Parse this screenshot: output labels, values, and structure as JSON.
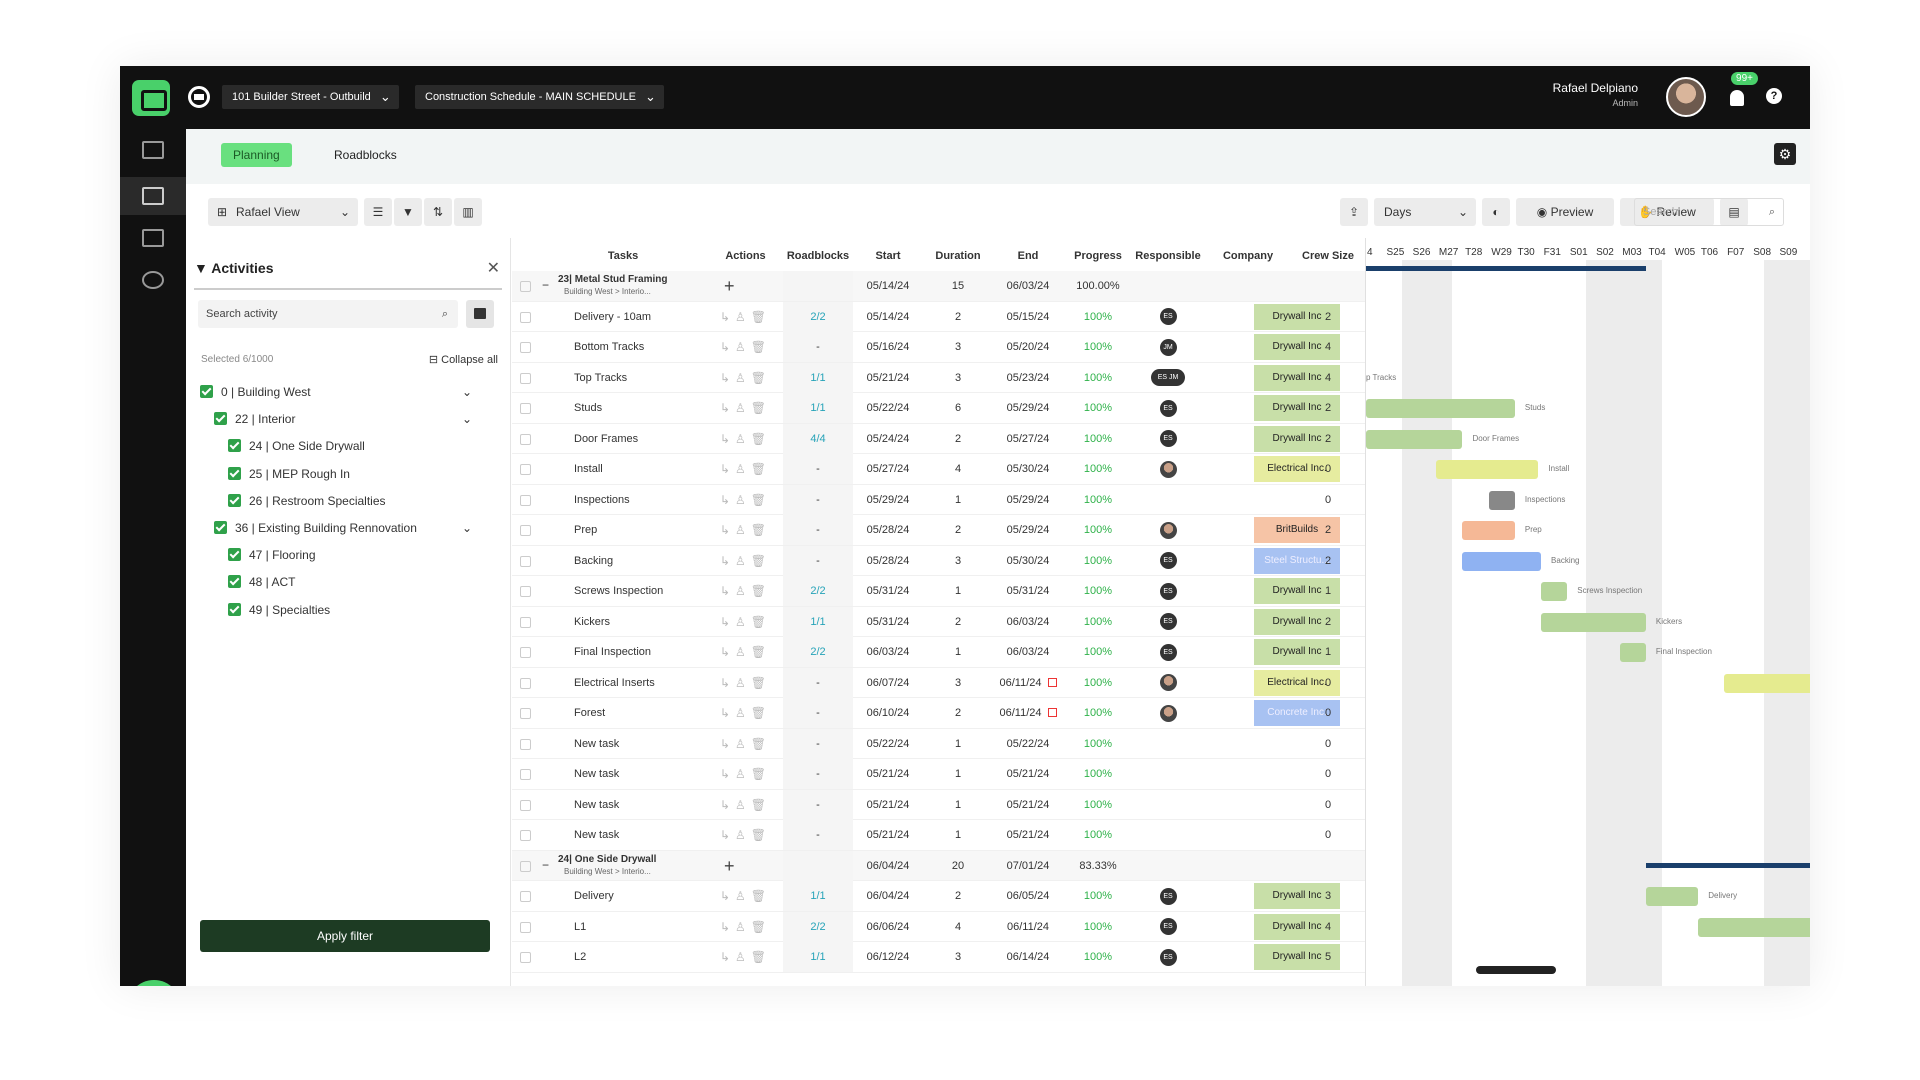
{
  "topbar": {
    "project": "101 Builder Street - Outbuild",
    "schedule": "Construction Schedule - MAIN SCHEDULE",
    "user_name": "Rafael Delpiano",
    "user_role": "Admin",
    "notif_badge": "99+",
    "help": "?"
  },
  "tabs": {
    "planning": "Planning",
    "roadblocks": "Roadblocks"
  },
  "toolbar": {
    "view": "Rafael View",
    "scale": "Days",
    "preview": "Preview",
    "review": "Review",
    "search_placeholder": "Search"
  },
  "activities": {
    "title": "Activities",
    "search_placeholder": "Search activity",
    "selected": "Selected 6/1000",
    "collapse_all": "Collapse all",
    "apply": "Apply filter",
    "tree": [
      {
        "label": "0 | Building West",
        "level": 0,
        "chevron": true
      },
      {
        "label": "22 | Interior",
        "level": 1,
        "chevron": true
      },
      {
        "label": "24 | One Side Drywall",
        "level": 2,
        "chevron": false
      },
      {
        "label": "25 | MEP Rough In",
        "level": 2,
        "chevron": false
      },
      {
        "label": "26 | Restroom Specialties",
        "level": 2,
        "chevron": false
      },
      {
        "label": "36 | Existing Building Rennovation",
        "level": 1,
        "chevron": true
      },
      {
        "label": "47 | Flooring",
        "level": 2,
        "chevron": false
      },
      {
        "label": "48 | ACT",
        "level": 2,
        "chevron": false
      },
      {
        "label": "49 | Specialties",
        "level": 2,
        "chevron": false
      }
    ]
  },
  "table": {
    "headers": [
      "Tasks",
      "Actions",
      "Roadblocks",
      "Start",
      "Duration",
      "End",
      "Progress",
      "Responsible",
      "Company",
      "Crew Size"
    ],
    "rows": [
      {
        "group": true,
        "task": "23| Metal Stud Framing",
        "sub": "Building West > Interio...",
        "start": "05/14/24",
        "duration": "15",
        "end": "06/03/24",
        "progress": "100.00%"
      },
      {
        "task": "Delivery - 10am",
        "rb": "2/2",
        "start": "05/14/24",
        "duration": "2",
        "end": "05/15/24",
        "progress": "100%",
        "resp": "ES",
        "company": "Drywall Inc",
        "ccolor": "#c8dfa8",
        "crew": "2"
      },
      {
        "task": "Bottom Tracks",
        "rb": "-",
        "start": "05/16/24",
        "duration": "3",
        "end": "05/20/24",
        "progress": "100%",
        "resp": "JM",
        "company": "Drywall Inc",
        "ccolor": "#c8dfa8",
        "crew": "4"
      },
      {
        "task": "Top Tracks",
        "rb": "1/1",
        "start": "05/21/24",
        "duration": "3",
        "end": "05/23/24",
        "progress": "100%",
        "resp": "ES JM",
        "company": "Drywall Inc",
        "ccolor": "#c8dfa8",
        "crew": "4"
      },
      {
        "task": "Studs",
        "rb": "1/1",
        "start": "05/22/24",
        "duration": "6",
        "end": "05/29/24",
        "progress": "100%",
        "resp": "ES",
        "company": "Drywall Inc",
        "ccolor": "#c8dfa8",
        "crew": "2"
      },
      {
        "task": "Door Frames",
        "rb": "4/4",
        "start": "05/24/24",
        "duration": "2",
        "end": "05/27/24",
        "progress": "100%",
        "resp": "ES",
        "company": "Drywall Inc",
        "ccolor": "#c8dfa8",
        "crew": "2"
      },
      {
        "task": "Install",
        "rb": "-",
        "start": "05/27/24",
        "duration": "4",
        "end": "05/30/24",
        "progress": "100%",
        "resp": "photo",
        "company": "Electrical Inc.",
        "ccolor": "#e6eca0",
        "crew": "0"
      },
      {
        "task": "Inspections",
        "rb": "-",
        "start": "05/29/24",
        "duration": "1",
        "end": "05/29/24",
        "progress": "100%",
        "resp": "",
        "company": "",
        "ccolor": "",
        "crew": "0"
      },
      {
        "task": "Prep",
        "rb": "-",
        "start": "05/28/24",
        "duration": "2",
        "end": "05/29/24",
        "progress": "100%",
        "resp": "photo",
        "company": "BritBuilds",
        "ccolor": "#f6c4a6",
        "crew": "2"
      },
      {
        "task": "Backing",
        "rb": "-",
        "start": "05/28/24",
        "duration": "3",
        "end": "05/30/24",
        "progress": "100%",
        "resp": "ES",
        "company": "Steel Structu...",
        "ccolor": "#a8c2f2",
        "crew": "2"
      },
      {
        "task": "Screws Inspection",
        "rb": "2/2",
        "start": "05/31/24",
        "duration": "1",
        "end": "05/31/24",
        "progress": "100%",
        "resp": "ES",
        "company": "Drywall Inc",
        "ccolor": "#c8dfa8",
        "crew": "1"
      },
      {
        "task": "Kickers",
        "rb": "1/1",
        "start": "05/31/24",
        "duration": "2",
        "end": "06/03/24",
        "progress": "100%",
        "resp": "ES",
        "company": "Drywall Inc",
        "ccolor": "#c8dfa8",
        "crew": "2"
      },
      {
        "task": "Final Inspection",
        "rb": "2/2",
        "start": "06/03/24",
        "duration": "1",
        "end": "06/03/24",
        "progress": "100%",
        "resp": "ES",
        "company": "Drywall Inc",
        "ccolor": "#c8dfa8",
        "crew": "1"
      },
      {
        "task": "Electrical Inserts",
        "rb": "-",
        "start": "06/07/24",
        "duration": "3",
        "end": "06/11/24",
        "progress": "100%",
        "resp": "photo",
        "company": "Electrical Inc.",
        "ccolor": "#e6eca0",
        "crew": "0",
        "flag": true
      },
      {
        "task": "Forest",
        "rb": "-",
        "start": "06/10/24",
        "duration": "2",
        "end": "06/11/24",
        "progress": "100%",
        "resp": "photo",
        "company": "Concrete Inc.",
        "ccolor": "#a8c2f2",
        "crew": "0",
        "flag": true
      },
      {
        "task": "New task",
        "rb": "-",
        "start": "05/22/24",
        "duration": "1",
        "end": "05/22/24",
        "progress": "100%",
        "resp": "",
        "company": "",
        "ccolor": "",
        "crew": "0"
      },
      {
        "task": "New task",
        "rb": "-",
        "start": "05/21/24",
        "duration": "1",
        "end": "05/21/24",
        "progress": "100%",
        "resp": "",
        "company": "",
        "ccolor": "",
        "crew": "0"
      },
      {
        "task": "New task",
        "rb": "-",
        "start": "05/21/24",
        "duration": "1",
        "end": "05/21/24",
        "progress": "100%",
        "resp": "",
        "company": "",
        "ccolor": "",
        "crew": "0"
      },
      {
        "task": "New task",
        "rb": "-",
        "start": "05/21/24",
        "duration": "1",
        "end": "05/21/24",
        "progress": "100%",
        "resp": "",
        "company": "",
        "ccolor": "",
        "crew": "0"
      },
      {
        "group": true,
        "task": "24| One Side Drywall",
        "sub": "Building West > Interio...",
        "start": "06/04/24",
        "duration": "20",
        "end": "07/01/24",
        "progress": "83.33%"
      },
      {
        "task": "Delivery",
        "rb": "1/1",
        "start": "06/04/24",
        "duration": "2",
        "end": "06/05/24",
        "progress": "100%",
        "resp": "ES",
        "company": "Drywall Inc",
        "ccolor": "#c8dfa8",
        "crew": "3"
      },
      {
        "task": "L1",
        "rb": "2/2",
        "start": "06/06/24",
        "duration": "4",
        "end": "06/11/24",
        "progress": "100%",
        "resp": "ES",
        "company": "Drywall Inc",
        "ccolor": "#c8dfa8",
        "crew": "4"
      },
      {
        "task": "L2",
        "rb": "1/1",
        "start": "06/12/24",
        "duration": "3",
        "end": "06/14/24",
        "progress": "100%",
        "resp": "ES",
        "company": "Drywall Inc",
        "ccolor": "#c8dfa8",
        "crew": "5"
      }
    ]
  },
  "gantt": {
    "weeks": [
      "4",
      "S25",
      "S26",
      "M27",
      "T28",
      "W29",
      "T30",
      "F31",
      "S01",
      "S02",
      "M03",
      "T04",
      "W05",
      "T06",
      "F07",
      "S08",
      "S09"
    ],
    "bars": [
      {
        "row": 3,
        "start": 0,
        "end": 0.5,
        "label": "p Tracks",
        "color": "",
        "label_only": true
      },
      {
        "row": 4,
        "start": 0,
        "end": 5.3,
        "label": "Studs",
        "color": "#b5d59a"
      },
      {
        "row": 5,
        "start": 0,
        "end": 3.3,
        "label": "Door Frames",
        "color": "#b5d59a"
      },
      {
        "row": 6,
        "start": 2.3,
        "end": 6.2,
        "label": "Install",
        "color": "#e5eb8f"
      },
      {
        "row": 7,
        "start": 4.3,
        "end": 5.3,
        "label": "Inspections",
        "color": "#888888"
      },
      {
        "row": 8,
        "start": 3.3,
        "end": 5.3,
        "label": "Prep",
        "color": "#f5b896"
      },
      {
        "row": 9,
        "start": 3.3,
        "end": 6.3,
        "label": "Backing",
        "color": "#8fb2f2"
      },
      {
        "row": 10,
        "start": 6.3,
        "end": 7.3,
        "label": "Screws Inspection",
        "color": "#b5d59a"
      },
      {
        "row": 11,
        "start": 6.3,
        "end": 10.3,
        "label": "Kickers",
        "color": "#b5d59a"
      },
      {
        "row": 12,
        "start": 9.3,
        "end": 10.3,
        "label": "Final Inspection",
        "color": "#b5d59a"
      },
      {
        "row": 13,
        "start": 13.3,
        "end": 17,
        "label": "",
        "color": "#e5eb8f"
      },
      {
        "row": 14,
        "start": 16.8,
        "end": 17.2,
        "label": "",
        "color": "#8fb2f2"
      },
      {
        "row": 20,
        "start": 10.3,
        "end": 12.3,
        "label": "Delivery",
        "color": "#b5d59a"
      },
      {
        "row": 21,
        "start": 12.3,
        "end": 17,
        "label": "",
        "color": "#b5d59a"
      }
    ]
  }
}
